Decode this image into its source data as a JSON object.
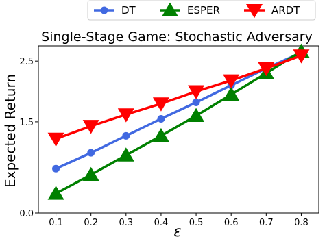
{
  "chart_data": {
    "type": "line",
    "title": "Single-Stage Game: Stochastic Adversary",
    "xlabel": "ε",
    "ylabel": "Expected Return",
    "x": [
      0.1,
      0.2,
      0.3,
      0.4,
      0.5,
      0.6,
      0.7,
      0.8
    ],
    "x_ticks": [
      "0.1",
      "0.2",
      "0.3",
      "0.4",
      "0.5",
      "0.6",
      "0.7",
      "0.8"
    ],
    "y_ticks": [
      {
        "value": 0.0,
        "label": "0.0"
      },
      {
        "value": 1.5,
        "label": "1.5"
      },
      {
        "value": 2.5,
        "label": "2.5"
      }
    ],
    "xlim": [
      0.05,
      0.85
    ],
    "ylim": [
      0.0,
      2.75
    ],
    "grid": false,
    "legend_position": "top-center, outside",
    "series": [
      {
        "name": "DT",
        "color": "#4169e1",
        "marker": "circle",
        "values": [
          0.73,
          0.99,
          1.27,
          1.55,
          1.82,
          2.1,
          2.38,
          2.64
        ]
      },
      {
        "name": "ESPER",
        "color": "#008000",
        "marker": "triangle-up",
        "values": [
          0.32,
          0.63,
          0.95,
          1.27,
          1.6,
          1.95,
          2.3,
          2.66
        ]
      },
      {
        "name": "ARDT",
        "color": "#ff0000",
        "marker": "triangle-down",
        "values": [
          1.22,
          1.43,
          1.62,
          1.8,
          2.0,
          2.18,
          2.38,
          2.59
        ]
      }
    ]
  }
}
